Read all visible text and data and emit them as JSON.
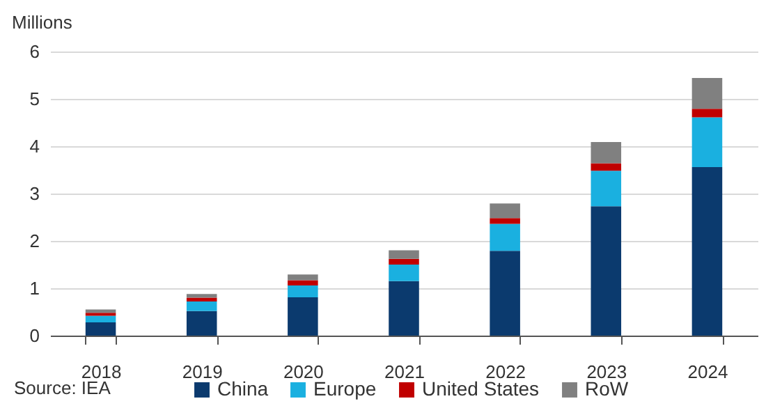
{
  "chart_data": {
    "type": "bar",
    "stacked": true,
    "ylabel": "Millions",
    "annotations": [
      "Source: IEA"
    ],
    "categories": [
      "2018",
      "2019",
      "2020",
      "2021",
      "2022",
      "2023",
      "2024"
    ],
    "series": [
      {
        "name": "China",
        "color": "#0b3a6e",
        "values": [
          0.28,
          0.52,
          0.81,
          1.15,
          1.79,
          2.73,
          3.56
        ]
      },
      {
        "name": "Europe",
        "color": "#1ab0e0",
        "values": [
          0.14,
          0.2,
          0.25,
          0.35,
          0.57,
          0.75,
          1.05
        ]
      },
      {
        "name": "United States",
        "color": "#c00000",
        "values": [
          0.06,
          0.08,
          0.11,
          0.12,
          0.12,
          0.16,
          0.18
        ]
      },
      {
        "name": "RoW",
        "color": "#808080",
        "values": [
          0.07,
          0.08,
          0.12,
          0.18,
          0.31,
          0.45,
          0.65
        ]
      }
    ],
    "ylim": [
      0,
      6
    ],
    "yticks": [
      0,
      1,
      2,
      3,
      4,
      5,
      6
    ],
    "grid": "y",
    "legend": "bottom"
  }
}
